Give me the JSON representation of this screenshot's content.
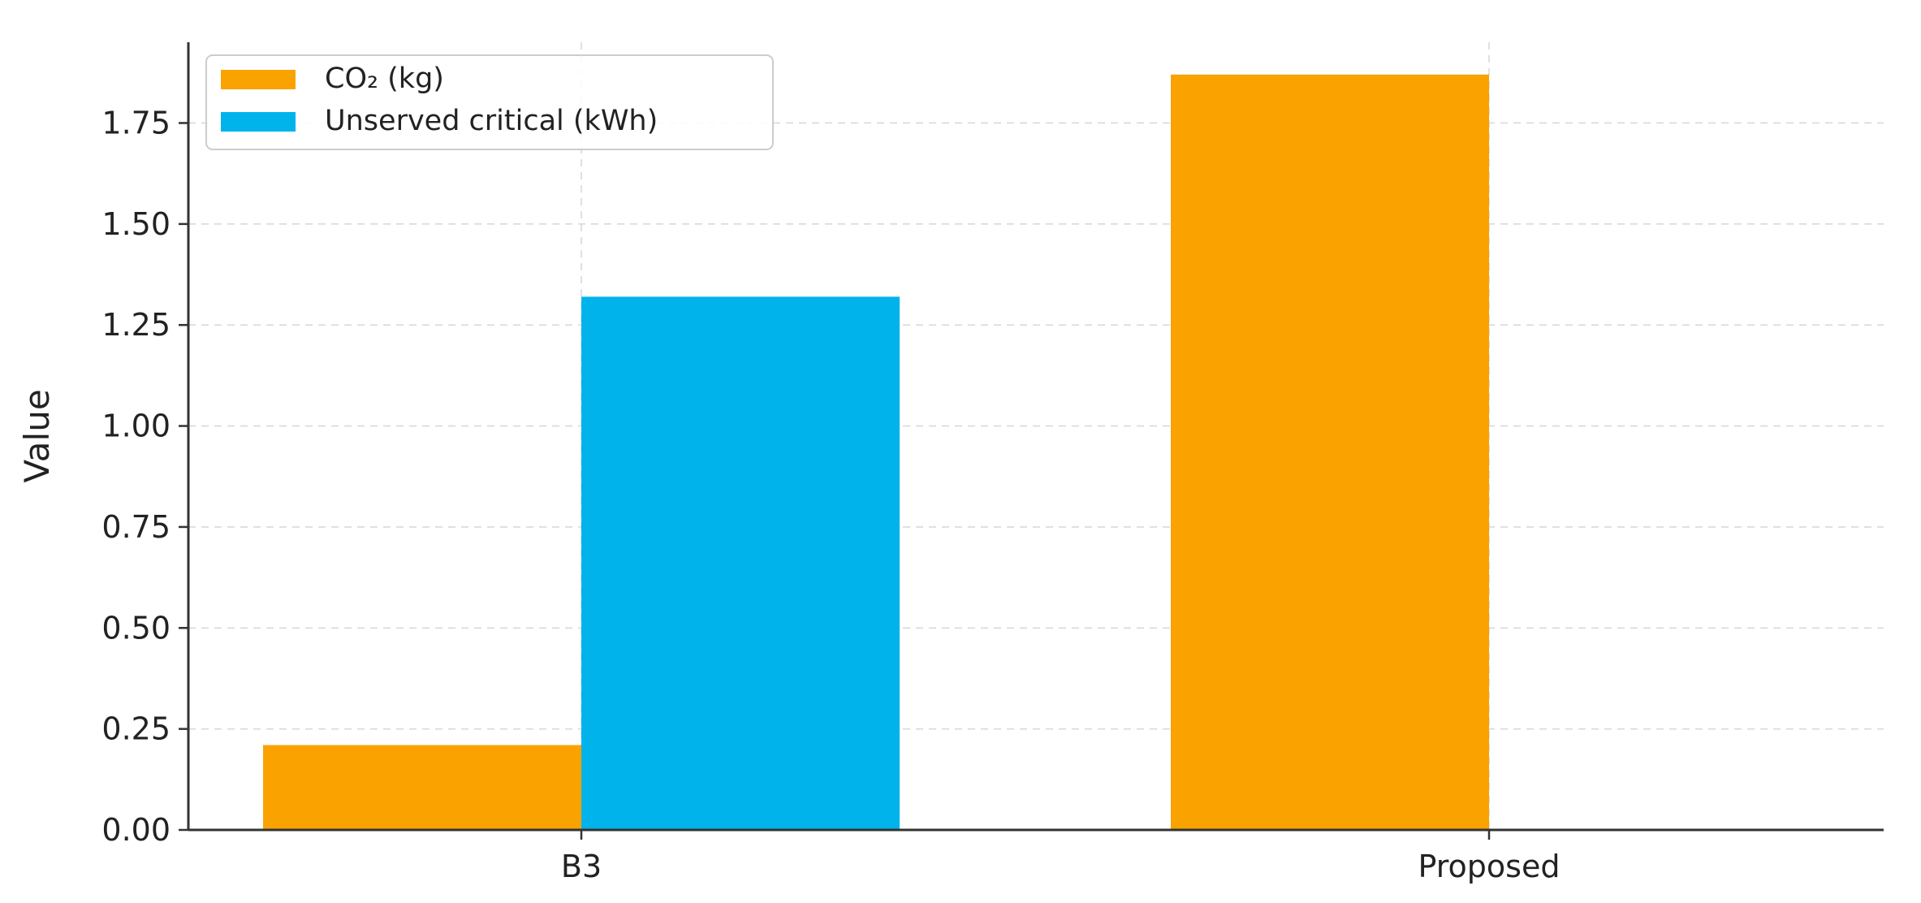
{
  "chart_data": {
    "type": "bar",
    "categories": [
      "B3",
      "Proposed"
    ],
    "series": [
      {
        "name": "CO₂ (kg)",
        "values": [
          0.21,
          1.87
        ],
        "color": "#FAA200"
      },
      {
        "name": "Unserved critical (kWh)",
        "values": [
          1.32,
          0.0
        ],
        "color": "#00B3EA"
      }
    ],
    "xlabel": "",
    "ylabel": "Value",
    "ylim": [
      0,
      1.95
    ],
    "yticks": [
      0.0,
      0.25,
      0.5,
      0.75,
      1.0,
      1.25,
      1.5,
      1.75
    ],
    "ytick_labels": [
      "0.00",
      "0.25",
      "0.50",
      "0.75",
      "1.00",
      "1.25",
      "1.50",
      "1.75"
    ],
    "grid": true,
    "legend_position": "top-left"
  }
}
